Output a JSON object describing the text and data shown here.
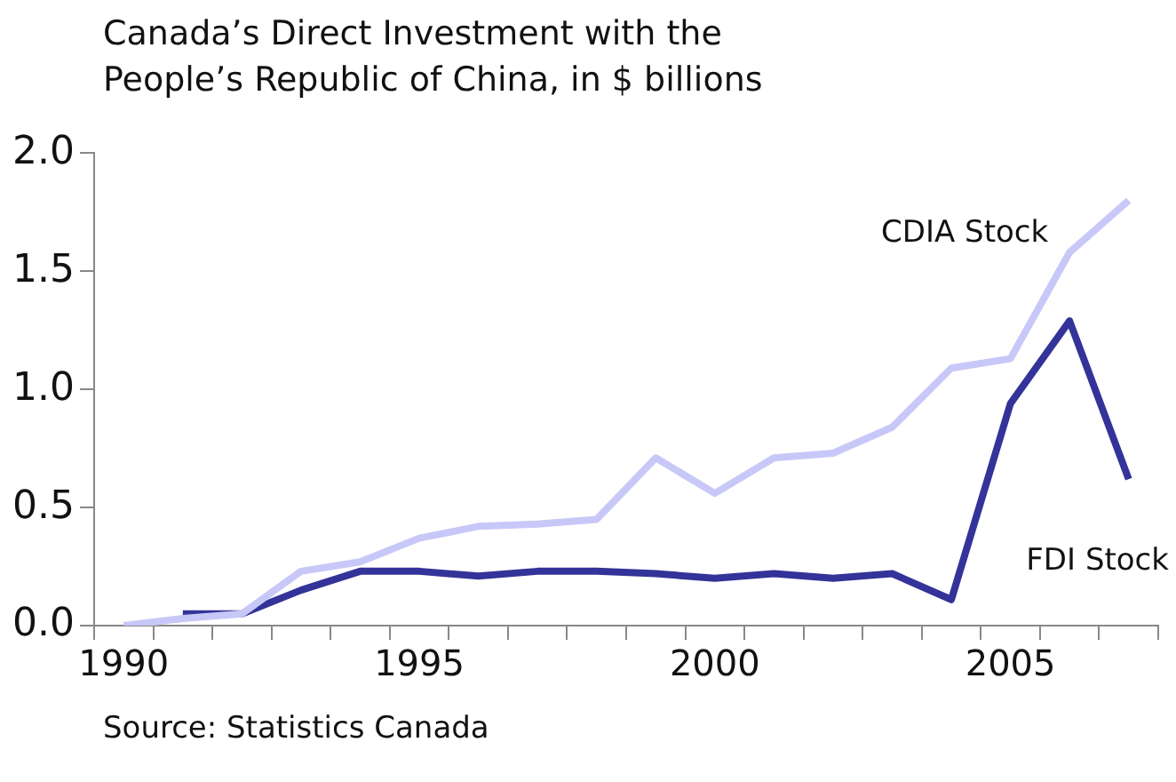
{
  "chart_data": {
    "type": "line",
    "title": "Canada’s Direct Investment with the People’s Republic of China, in $ billions",
    "annotations": [
      "Source: Statistics Canada"
    ],
    "categories": [
      "1990",
      null,
      null,
      null,
      null,
      "1995",
      null,
      null,
      null,
      null,
      "2000",
      null,
      null,
      null,
      null,
      "2005",
      null,
      null
    ],
    "series": [
      {
        "name": "CDIA Stock",
        "color": "#c8c8f8",
        "values": [
          0.0,
          0.03,
          0.05,
          0.23,
          0.27,
          0.37,
          0.42,
          0.43,
          0.45,
          0.71,
          0.56,
          0.71,
          0.73,
          0.84,
          1.09,
          1.13,
          1.58,
          1.8
        ]
      },
      {
        "name": "FDI Stock",
        "color": "#333399",
        "values": [
          null,
          0.05,
          0.05,
          0.15,
          0.23,
          0.23,
          0.21,
          0.23,
          0.23,
          0.22,
          0.2,
          0.22,
          0.2,
          0.22,
          0.11,
          0.94,
          1.29,
          0.62
        ]
      }
    ],
    "ylim": [
      0,
      2
    ],
    "yticks": [
      {
        "value": 0,
        "label": "0.0"
      },
      {
        "value": 0.5,
        "label": "0.5"
      },
      {
        "value": 1,
        "label": "1.0"
      },
      {
        "value": 1.5,
        "label": "1.5"
      },
      {
        "value": 2,
        "label": "2.0"
      }
    ],
    "grid": false,
    "legend": false,
    "marker": "none",
    "line_style": "solid"
  }
}
